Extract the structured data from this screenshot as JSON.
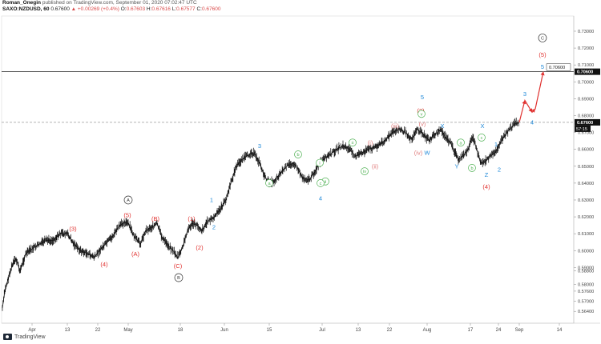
{
  "header": {
    "author": "Roman_Onegin",
    "published": "published on TradingView.com, September 01, 2020 07:02:47 UTC",
    "symbol": "SAXO:NZDUSD, 60",
    "last": "0.67600",
    "change": "▲ +0.00269 (+0.4%)",
    "o_label": "O:",
    "o": "0.67603",
    "h_label": "H:",
    "h": "0.67616",
    "l_label": "L:",
    "l": "0.67577",
    "c_label": "C:",
    "c": "0.67600"
  },
  "footer": {
    "brand": "TradingView"
  },
  "colors": {
    "candles": "#111111",
    "red": "#e0312f",
    "blue": "#1e88d8",
    "green": "#4caf50",
    "pink": "#e07c7c",
    "black_circle": "#333333"
  },
  "chart_data": {
    "type": "line",
    "ylim": [
      0.557,
      0.739
    ],
    "y_ticks": [
      "0.73000",
      "0.72000",
      "0.71000",
      "0.70000",
      "0.69000",
      "0.68000",
      "0.67000",
      "0.66000",
      "0.65000",
      "0.64000",
      "0.63000",
      "0.62000",
      "0.61000",
      "0.60000",
      "0.59000",
      "0.58800",
      "0.58000",
      "0.57600",
      "0.57000",
      "0.56400"
    ],
    "y_tick_values": [
      0.73,
      0.72,
      0.71,
      0.7,
      0.69,
      0.68,
      0.67,
      0.66,
      0.65,
      0.64,
      0.63,
      0.62,
      0.61,
      0.6,
      0.59,
      0.588,
      0.58,
      0.576,
      0.57,
      0.564
    ],
    "x_ticks": [
      "Apr",
      "13",
      "22",
      "May",
      "18",
      "Jun",
      "15",
      "Jul",
      "13",
      "22",
      "Aug",
      "17",
      "24",
      "Sep",
      "14"
    ],
    "x_tick_pos": [
      40,
      84,
      122,
      160,
      225,
      280,
      336,
      402,
      447,
      486,
      533,
      587,
      622,
      648,
      698
    ],
    "series": [
      {
        "x": [
          3,
          6,
          10,
          15,
          20,
          25,
          32,
          40,
          50,
          58,
          66,
          75,
          84,
          92,
          100,
          110,
          118,
          124,
          132,
          140,
          148,
          155,
          160,
          168,
          175,
          182,
          190,
          196,
          202,
          210,
          216,
          222,
          228,
          234,
          240,
          246,
          252,
          260,
          266,
          274,
          282,
          288,
          295,
          302,
          308,
          314,
          318,
          324,
          330,
          336,
          342,
          350,
          358,
          366,
          372,
          378,
          386,
          392,
          398,
          404,
          412,
          420,
          428,
          436,
          444,
          452,
          460,
          466,
          474,
          482,
          490,
          498,
          506,
          514,
          520,
          526,
          530,
          536,
          540,
          546,
          550,
          556,
          562,
          568,
          572,
          578,
          584,
          590,
          596,
          600,
          606,
          612,
          618,
          624,
          630,
          636,
          642,
          648
        ],
        "values": [
          0.566,
          0.576,
          0.583,
          0.591,
          0.595,
          0.588,
          0.598,
          0.601,
          0.604,
          0.606,
          0.606,
          0.61,
          0.61,
          0.604,
          0.6,
          0.598,
          0.596,
          0.6,
          0.604,
          0.608,
          0.614,
          0.617,
          0.616,
          0.608,
          0.604,
          0.612,
          0.614,
          0.616,
          0.608,
          0.603,
          0.6,
          0.596,
          0.602,
          0.612,
          0.616,
          0.615,
          0.612,
          0.618,
          0.619,
          0.624,
          0.63,
          0.64,
          0.65,
          0.654,
          0.656,
          0.658,
          0.657,
          0.652,
          0.644,
          0.64,
          0.641,
          0.646,
          0.65,
          0.652,
          0.648,
          0.643,
          0.642,
          0.646,
          0.651,
          0.654,
          0.657,
          0.66,
          0.662,
          0.66,
          0.656,
          0.658,
          0.66,
          0.661,
          0.663,
          0.666,
          0.67,
          0.672,
          0.67,
          0.666,
          0.672,
          0.67,
          0.668,
          0.665,
          0.668,
          0.67,
          0.672,
          0.667,
          0.664,
          0.658,
          0.654,
          0.656,
          0.66,
          0.668,
          0.658,
          0.652,
          0.653,
          0.656,
          0.658,
          0.664,
          0.668,
          0.672,
          0.675,
          0.676
        ]
      }
    ],
    "projection": {
      "x": [
        648,
        655,
        664,
        668,
        678
      ],
      "values": [
        0.676,
        0.689,
        0.682,
        0.684,
        0.706
      ]
    },
    "level_lines": [
      {
        "value": 0.706,
        "label": "0.70600",
        "style": "solid"
      },
      {
        "value": 0.676,
        "label": "0.67600",
        "style": "dashed",
        "sub": "57:15"
      }
    ],
    "target_label": "0.70600",
    "labels": [
      {
        "t": "A",
        "x": 160,
        "v": 0.63,
        "c": "black_circle",
        "circ": true
      },
      {
        "t": "B",
        "x": 223,
        "v": 0.584,
        "c": "black_circle",
        "circ": true
      },
      {
        "t": "C",
        "x": 677,
        "v": 0.726,
        "c": "black_circle",
        "circ": true
      },
      {
        "t": "(3)",
        "x": 91,
        "v": 0.613,
        "c": "red"
      },
      {
        "t": "(4)",
        "x": 130,
        "v": 0.592,
        "c": "red"
      },
      {
        "t": "(5)",
        "x": 159,
        "v": 0.621,
        "c": "red"
      },
      {
        "t": "(A)",
        "x": 169,
        "v": 0.598,
        "c": "red"
      },
      {
        "t": "(B)",
        "x": 194,
        "v": 0.619,
        "c": "red"
      },
      {
        "t": "(C)",
        "x": 222,
        "v": 0.591,
        "c": "red"
      },
      {
        "t": "(1)",
        "x": 239,
        "v": 0.619,
        "c": "red"
      },
      {
        "t": "(2)",
        "x": 249,
        "v": 0.602,
        "c": "red"
      },
      {
        "t": "(3)",
        "x": 525,
        "v": 0.683,
        "c": "red"
      },
      {
        "t": "(4)",
        "x": 607,
        "v": 0.638,
        "c": "red"
      },
      {
        "t": "(5)",
        "x": 677,
        "v": 0.716,
        "c": "red"
      },
      {
        "t": "1",
        "x": 264,
        "v": 0.63,
        "c": "blue"
      },
      {
        "t": "2",
        "x": 267,
        "v": 0.614,
        "c": "blue"
      },
      {
        "t": "3",
        "x": 324,
        "v": 0.662,
        "c": "blue"
      },
      {
        "t": "4",
        "x": 400,
        "v": 0.631,
        "c": "blue"
      },
      {
        "t": "5",
        "x": 527,
        "v": 0.691,
        "c": "blue"
      },
      {
        "t": "W",
        "x": 533,
        "v": 0.658,
        "c": "blue"
      },
      {
        "t": "X",
        "x": 552,
        "v": 0.674,
        "c": "blue"
      },
      {
        "t": "Y",
        "x": 570,
        "v": 0.65,
        "c": "blue"
      },
      {
        "t": "X",
        "x": 602,
        "v": 0.674,
        "c": "blue"
      },
      {
        "t": "Z",
        "x": 607,
        "v": 0.645,
        "c": "blue"
      },
      {
        "t": "1",
        "x": 619,
        "v": 0.663,
        "c": "blue"
      },
      {
        "t": "2",
        "x": 623,
        "v": 0.648,
        "c": "blue"
      },
      {
        "t": "3",
        "x": 655,
        "v": 0.693,
        "c": "blue"
      },
      {
        "t": "4",
        "x": 664,
        "v": 0.676,
        "c": "blue"
      },
      {
        "t": "5",
        "x": 677,
        "v": 0.709,
        "c": "blue"
      },
      {
        "t": "a",
        "x": 336,
        "v": 0.64,
        "c": "green",
        "circ": true
      },
      {
        "t": "b",
        "x": 372,
        "v": 0.657,
        "c": "green",
        "circ": true
      },
      {
        "t": "i",
        "x": 399,
        "v": 0.652,
        "c": "green",
        "circ": true
      },
      {
        "t": "ii",
        "x": 406,
        "v": 0.641,
        "c": "green",
        "circ": true
      },
      {
        "t": "c",
        "x": 400,
        "v": 0.64,
        "c": "green",
        "circ": true
      },
      {
        "t": "iii",
        "x": 440,
        "v": 0.664,
        "c": "green",
        "circ": true
      },
      {
        "t": "iv",
        "x": 455,
        "v": 0.647,
        "c": "green",
        "circ": true
      },
      {
        "t": "v",
        "x": 526,
        "v": 0.681,
        "c": "green",
        "circ": true
      },
      {
        "t": "a",
        "x": 575,
        "v": 0.664,
        "c": "green",
        "circ": true
      },
      {
        "t": "b",
        "x": 589,
        "v": 0.649,
        "c": "green",
        "circ": true
      },
      {
        "t": "c",
        "x": 601,
        "v": 0.667,
        "c": "green",
        "circ": true
      },
      {
        "t": "(i)",
        "x": 462,
        "v": 0.664,
        "c": "pink"
      },
      {
        "t": "(ii)",
        "x": 468,
        "v": 0.65,
        "c": "pink"
      },
      {
        "t": "(iii)",
        "x": 493,
        "v": 0.674,
        "c": "pink"
      },
      {
        "t": "(iv)",
        "x": 522,
        "v": 0.658,
        "c": "pink"
      },
      {
        "t": "(v)",
        "x": 527,
        "v": 0.675,
        "c": "pink"
      }
    ]
  }
}
